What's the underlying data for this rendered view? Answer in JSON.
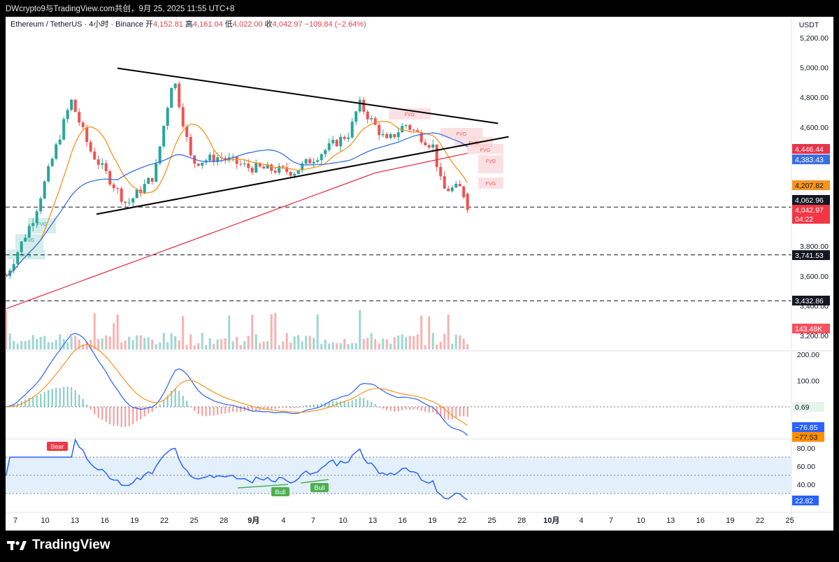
{
  "header": {
    "publisher_line": "DWcrypto9与TradingView.com共创，9月 25, 2025 11:55 UTC+8"
  },
  "legend": {
    "symbol": "Ethereum / TetherUS · 4小时 · Binance",
    "open_label": "开",
    "open": "4,152.81",
    "high_label": "高",
    "high": "4,161.04",
    "low_label": "低",
    "low": "4,022.00",
    "close_label": "收",
    "close": "4,042.97",
    "change": "−109.84 (−2.64%)"
  },
  "price_axis": {
    "currency": "USDT",
    "ticks": [
      "5,200.00",
      "5,000.00",
      "4,800.00",
      "4,600.00",
      "3,800.00",
      "3,600.00",
      "3,400.00",
      "3,200.00"
    ]
  },
  "price_badges": [
    {
      "id": "ma-red",
      "text": "4,446.44",
      "bg": "#e8334a",
      "fg": "#ffffff"
    },
    {
      "id": "ma-blue",
      "text": "4,383.43",
      "bg": "#3b6fe0",
      "fg": "#ffffff"
    },
    {
      "id": "ma-orange",
      "text": "4,207.82",
      "bg": "#f7941d",
      "fg": "#131722"
    },
    {
      "id": "level-1",
      "text": "4,062.96",
      "bg": "#131722",
      "fg": "#ffffff"
    },
    {
      "id": "last-price",
      "text": "4,042.97",
      "bg": "#f23645",
      "fg": "#ffffff"
    },
    {
      "id": "countdown",
      "text": "04:22",
      "bg": "#f23645",
      "fg": "#ffffff"
    },
    {
      "id": "level-2",
      "text": "3,741.53",
      "bg": "#131722",
      "fg": "#ffffff"
    },
    {
      "id": "level-3",
      "text": "3,432.86",
      "bg": "#131722",
      "fg": "#ffffff"
    },
    {
      "id": "volume",
      "text": "143.48K",
      "bg": "#f7525f",
      "fg": "#ffffff"
    }
  ],
  "macd_axis": {
    "ticks": [
      "200.00",
      "100.00"
    ],
    "hist_value": "0.69",
    "macd_value": "−76.85",
    "signal_value": "−77.53"
  },
  "rsi_axis": {
    "ticks": [
      "80.00",
      "60.00",
      "40.00"
    ],
    "value": "22.82"
  },
  "fvg_labels": [
    "FVG",
    "FVG",
    "FVG",
    "FVG",
    "FVG",
    "FVG",
    "FVG",
    "FVG",
    "FVG"
  ],
  "divergence_labels": {
    "bear": "Bear",
    "bull": [
      "Bull",
      "Bull"
    ]
  },
  "time_axis": [
    "7",
    "10",
    "13",
    "16",
    "19",
    "22",
    "25",
    "28",
    "9月",
    "4",
    "7",
    "10",
    "13",
    "16",
    "19",
    "22",
    "25",
    "28",
    "10月",
    "4",
    "7",
    "10",
    "13",
    "16",
    "19",
    "22",
    "25"
  ],
  "brand": {
    "name": "TradingView"
  },
  "colors": {
    "up": "#26a69a",
    "down": "#ef5350",
    "ma_orange": "#f7941d",
    "ma_blue": "#3b6fe0",
    "ma_red": "#e8334a",
    "macd": "#2962ff",
    "signal": "#ff8f00",
    "rsi": "#2962ff",
    "rsi_band": "#e3f0fc",
    "fvg_up": "#b2dfdb",
    "fvg_down": "#f8c7cc"
  },
  "chart_data": [
    {
      "type": "candlestick",
      "title": "Ethereum / TetherUS · 4小时 · Binance",
      "y_unit": "USDT",
      "ylim": [
        3150,
        5300
      ],
      "x_range": [
        "2025-08-06",
        "2025-10-28"
      ],
      "key_points": [
        {
          "date": "2025-08-06",
          "price": 3600
        },
        {
          "date": "2025-08-09",
          "price": 4000
        },
        {
          "date": "2025-08-13",
          "price": 4780
        },
        {
          "date": "2025-08-15",
          "price": 4450
        },
        {
          "date": "2025-08-19",
          "price": 4080
        },
        {
          "date": "2025-08-22",
          "price": 4280
        },
        {
          "date": "2025-08-24",
          "price": 4950
        },
        {
          "date": "2025-08-26",
          "price": 4360
        },
        {
          "date": "2025-08-29",
          "price": 4400
        },
        {
          "date": "2025-09-01",
          "price": 4330
        },
        {
          "date": "2025-09-06",
          "price": 4300
        },
        {
          "date": "2025-09-12",
          "price": 4560
        },
        {
          "date": "2025-09-13",
          "price": 4760
        },
        {
          "date": "2025-09-16",
          "price": 4500
        },
        {
          "date": "2025-09-18",
          "price": 4620
        },
        {
          "date": "2025-09-21",
          "price": 4470
        },
        {
          "date": "2025-09-22",
          "price": 4180
        },
        {
          "date": "2025-09-24",
          "price": 4190
        },
        {
          "date": "2025-09-25",
          "price": 4042.97
        }
      ],
      "last": {
        "open": 4152.81,
        "high": 4161.04,
        "low": 4022.0,
        "close": 4042.97,
        "change": -109.84,
        "change_pct": -2.64
      },
      "moving_averages": [
        {
          "color": "orange",
          "last": 4207.82
        },
        {
          "color": "blue",
          "last": 4383.43
        },
        {
          "color": "red",
          "last": 4446.44
        }
      ],
      "horizontal_levels": [
        4062.96,
        3741.53,
        3432.86
      ],
      "triangle": {
        "upper": [
          {
            "date": "2025-08-18",
            "price": 4995
          },
          {
            "date": "2025-09-28",
            "price": 4625
          }
        ],
        "lower": [
          {
            "date": "2025-08-18",
            "price": 4035
          },
          {
            "date": "2025-09-28",
            "price": 4525
          }
        ]
      },
      "volume_last": "143.48K"
    },
    {
      "type": "line",
      "name": "MACD",
      "ylim": [
        -110,
        230
      ],
      "last": {
        "macd": -76.85,
        "signal": -77.53,
        "histogram": 0.69
      }
    },
    {
      "type": "line",
      "name": "RSI",
      "ylim": [
        10,
        90
      ],
      "band": [
        30,
        70
      ],
      "last": 22.82
    }
  ]
}
